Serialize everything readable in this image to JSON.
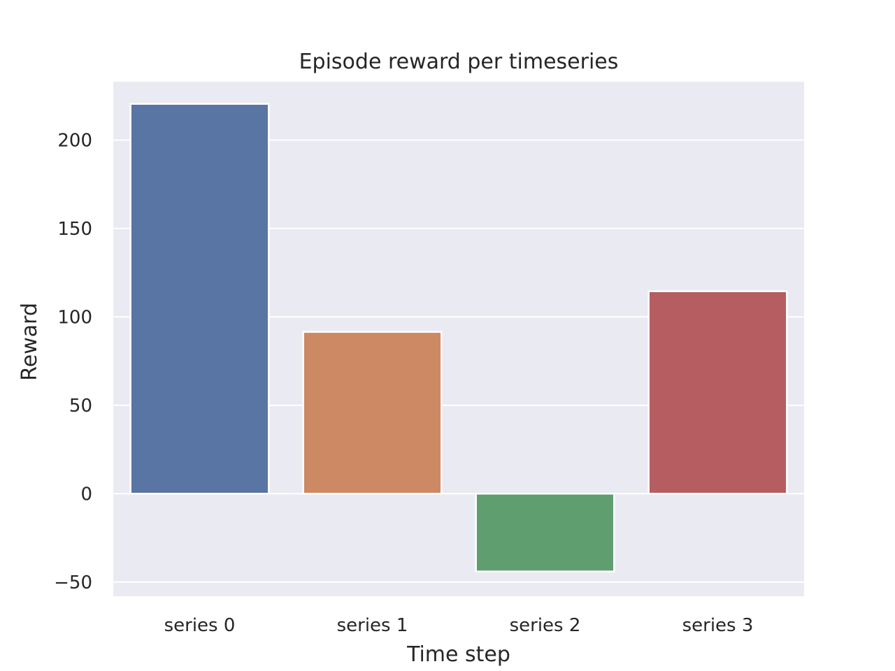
{
  "chart_data": {
    "type": "bar",
    "title": "Episode reward per timeseries",
    "xlabel": "Time step",
    "ylabel": "Reward",
    "categories": [
      "series 0",
      "series 1",
      "series 2",
      "series 3"
    ],
    "values": [
      220.5,
      91.5,
      -44.0,
      114.5
    ],
    "colors": [
      "#5975a4",
      "#cc8963",
      "#5f9e6e",
      "#b55d60"
    ],
    "ylim": [
      -58,
      233
    ],
    "yticks": [
      -50,
      0,
      50,
      100,
      150,
      200
    ],
    "ytick_labels": [
      "−50",
      "0",
      "50",
      "100",
      "150",
      "200"
    ],
    "grid": true,
    "plot_background": "#eaeaf2",
    "grid_color": "#ffffff"
  }
}
